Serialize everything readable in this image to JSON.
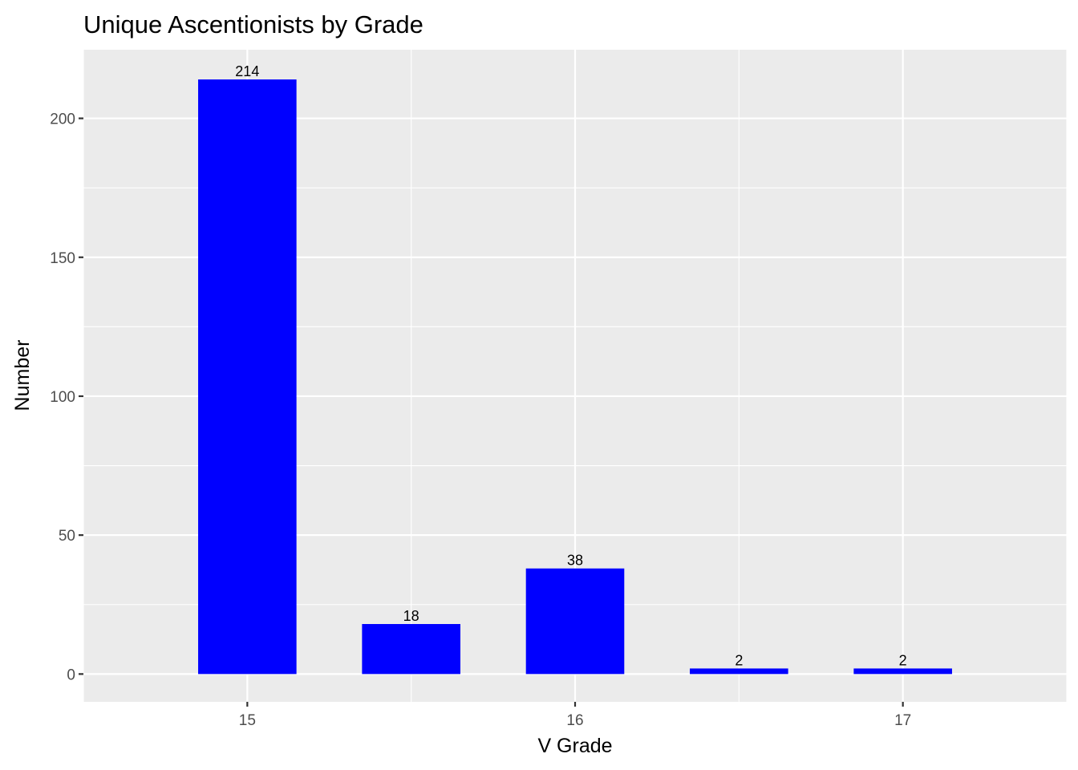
{
  "chart_data": {
    "type": "bar",
    "title": "Unique Ascentionists by Grade",
    "xlabel": "V Grade",
    "ylabel": "Number",
    "x": [
      15,
      15.5,
      16,
      16.5,
      17
    ],
    "values": [
      214,
      18,
      38,
      2,
      2
    ],
    "data_labels": [
      "214",
      "18",
      "38",
      "2",
      "2"
    ],
    "xlim": [
      14.5,
      17.5
    ],
    "ylim": [
      -10,
      224.7
    ],
    "x_ticks": [
      15,
      16,
      17
    ],
    "x_tick_labels": [
      "15",
      "16",
      "17"
    ],
    "y_ticks": [
      0,
      50,
      100,
      150,
      200
    ],
    "y_tick_labels": [
      "0",
      "50",
      "100",
      "150",
      "200"
    ],
    "grid": true,
    "legend": "none",
    "colors": {
      "bar": "#0000ff",
      "panel": "#ebebeb",
      "grid": "#ffffff"
    }
  }
}
